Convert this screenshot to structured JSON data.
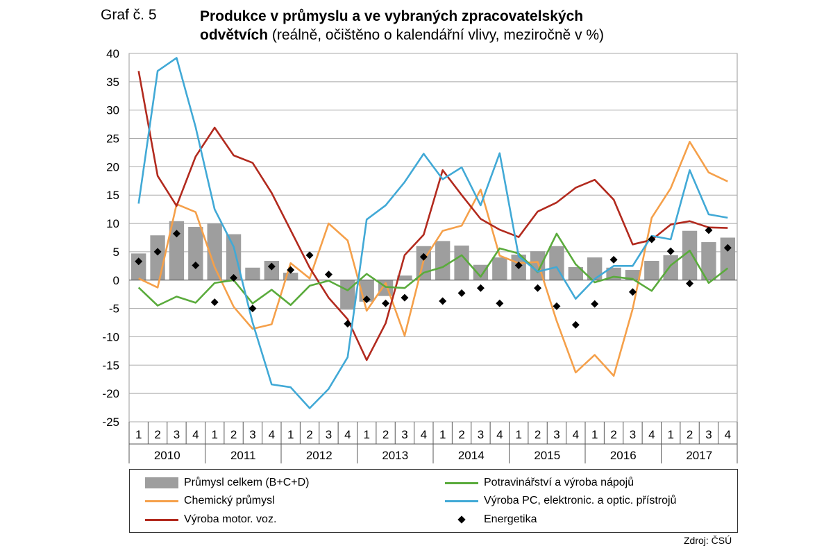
{
  "figure": {
    "label": "Graf č. 5",
    "title_bold_line1": "Produkce v průmyslu a ve vybraných zpracovatelských",
    "title_bold_line2": "odvětvích",
    "title_rest": "(reálně, očištěno o kalendářní vlivy, meziročně v %)",
    "source": "Zdroj: ČSÚ"
  },
  "chart_data": {
    "type": "bar",
    "ylim": [
      -25,
      40
    ],
    "yticks": [
      -25,
      -20,
      -15,
      -10,
      -5,
      0,
      5,
      10,
      15,
      20,
      25,
      30,
      35,
      40
    ],
    "grid": true,
    "legend_position": "bottom",
    "quarters": [
      "1",
      "2",
      "3",
      "4",
      "1",
      "2",
      "3",
      "4",
      "1",
      "2",
      "3",
      "4",
      "1",
      "2",
      "3",
      "4",
      "1",
      "2",
      "3",
      "4",
      "1",
      "2",
      "3",
      "4",
      "1",
      "2",
      "3",
      "4",
      "1",
      "2",
      "3",
      "4"
    ],
    "years": [
      "2010",
      "2011",
      "2012",
      "2013",
      "2014",
      "2015",
      "2016",
      "2017"
    ],
    "series": [
      {
        "name": "Průmysl celkem (B+C+D)",
        "kind": "bar",
        "color": "#9e9e9e",
        "values": [
          4.7,
          7.9,
          10.4,
          9.4,
          10.0,
          8.1,
          2.2,
          3.4,
          1.3,
          0.0,
          0.0,
          -5.2,
          -3.8,
          -2.8,
          0.8,
          6.0,
          6.9,
          6.1,
          2.7,
          4.0,
          4.5,
          5.1,
          6.0,
          2.3,
          4.0,
          2.2,
          1.8,
          3.4,
          4.4,
          8.7,
          6.7,
          7.5
        ]
      },
      {
        "name": "Chemický průmysl",
        "kind": "line",
        "color": "#f5a04a",
        "values": [
          0.3,
          -1.3,
          13.4,
          12.0,
          2.3,
          -4.7,
          -8.6,
          -7.8,
          3.0,
          0.3,
          10.0,
          7.0,
          -5.4,
          -0.5,
          -9.8,
          3.5,
          8.7,
          9.6,
          16.0,
          4.3,
          3.0,
          3.2,
          -7.2,
          -16.3,
          -13.2,
          -16.9,
          -5.1,
          11.0,
          16.2,
          24.4,
          19.0,
          17.4
        ]
      },
      {
        "name": "Výroba motor. voz.",
        "kind": "line",
        "color": "#b22a1e",
        "values": [
          36.9,
          18.4,
          13.1,
          21.8,
          26.9,
          22.0,
          20.7,
          15.4,
          8.8,
          2.2,
          -3.1,
          -6.9,
          -14.1,
          -7.6,
          4.4,
          8.0,
          19.4,
          15.0,
          10.8,
          8.9,
          7.6,
          12.1,
          13.7,
          16.3,
          17.7,
          14.2,
          6.3,
          7.1,
          9.8,
          10.4,
          9.3,
          9.2
        ]
      },
      {
        "name": "Potravinářství a výroba nápojů",
        "kind": "line",
        "color": "#5aab3c",
        "values": [
          -1.3,
          -4.5,
          -2.9,
          -4.0,
          -0.5,
          0.0,
          -4.1,
          -1.7,
          -4.4,
          -1.0,
          -0.1,
          -1.8,
          1.1,
          -1.2,
          -1.4,
          1.3,
          2.3,
          4.4,
          0.6,
          5.6,
          4.7,
          1.4,
          8.2,
          2.8,
          -0.4,
          0.6,
          0.2,
          -1.9,
          2.6,
          5.2,
          -0.5,
          2.1
        ]
      },
      {
        "name": "Výroba PC, elektronic. a optic. přístrojů",
        "kind": "line",
        "color": "#41a9d6",
        "values": [
          13.5,
          36.9,
          39.2,
          27.0,
          12.5,
          5.9,
          -7.5,
          -18.4,
          -18.9,
          -22.6,
          -19.2,
          -13.6,
          10.7,
          13.2,
          17.3,
          22.3,
          17.8,
          19.9,
          13.2,
          22.4,
          4.2,
          1.5,
          2.3,
          -3.3,
          0.2,
          2.5,
          2.5,
          7.8,
          7.2,
          19.4,
          11.6,
          11.0
        ]
      },
      {
        "name": "Energetika",
        "kind": "scatter",
        "color": "#000000",
        "values": [
          3.3,
          5.0,
          8.2,
          2.6,
          -3.9,
          0.4,
          -5.0,
          2.4,
          1.8,
          4.4,
          1.0,
          -7.7,
          -3.4,
          -4.1,
          -3.1,
          4.1,
          -3.7,
          -2.3,
          -1.4,
          -4.1,
          2.6,
          -1.4,
          -4.6,
          -7.9,
          -4.2,
          3.6,
          -2.1,
          7.2,
          5.1,
          -0.6,
          8.8,
          5.7
        ]
      }
    ]
  }
}
